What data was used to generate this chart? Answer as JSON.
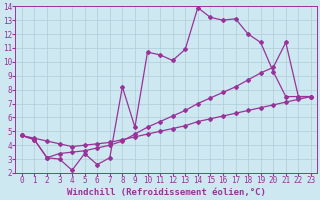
{
  "background_color": "#cde8f0",
  "line_color": "#993399",
  "grid_color": "#b0ccd8",
  "xlabel": "Windchill (Refroidissement éolien,°C)",
  "xlabel_fontsize": 6.5,
  "xlim": [
    -0.5,
    23.5
  ],
  "ylim": [
    2,
    14
  ],
  "xticks": [
    0,
    1,
    2,
    3,
    4,
    5,
    6,
    7,
    8,
    9,
    10,
    11,
    12,
    13,
    14,
    15,
    16,
    17,
    18,
    19,
    20,
    21,
    22,
    23
  ],
  "yticks": [
    2,
    3,
    4,
    5,
    6,
    7,
    8,
    9,
    10,
    11,
    12,
    13,
    14
  ],
  "series1_x": [
    0,
    1,
    2,
    3,
    4,
    5,
    6,
    7,
    8,
    9,
    10,
    11,
    12,
    13,
    14,
    15,
    16,
    17,
    18,
    19,
    20,
    21,
    22,
    23
  ],
  "series1_y": [
    4.7,
    4.4,
    3.1,
    3.0,
    2.2,
    3.4,
    2.6,
    3.1,
    8.2,
    5.3,
    10.7,
    10.5,
    10.1,
    10.9,
    13.9,
    13.2,
    13.0,
    13.1,
    12.0,
    11.4,
    9.3,
    7.5,
    7.5,
    7.5
  ],
  "series2_x": [
    0,
    1,
    2,
    3,
    4,
    5,
    6,
    7,
    8,
    9,
    10,
    11,
    12,
    13,
    14,
    15,
    16,
    17,
    18,
    19,
    20,
    21,
    22,
    23
  ],
  "series2_y": [
    4.7,
    4.4,
    3.1,
    3.4,
    3.5,
    3.6,
    3.8,
    4.0,
    4.3,
    4.8,
    5.3,
    5.7,
    6.1,
    6.5,
    7.0,
    7.4,
    7.8,
    8.2,
    8.7,
    9.2,
    9.6,
    11.4,
    7.5,
    7.5
  ],
  "series3_x": [
    0,
    1,
    2,
    3,
    4,
    5,
    6,
    7,
    8,
    9,
    10,
    11,
    12,
    13,
    14,
    15,
    16,
    17,
    18,
    19,
    20,
    21,
    22,
    23
  ],
  "series3_y": [
    4.7,
    4.5,
    4.3,
    4.1,
    3.9,
    4.0,
    4.1,
    4.2,
    4.4,
    4.6,
    4.8,
    5.0,
    5.2,
    5.4,
    5.7,
    5.9,
    6.1,
    6.3,
    6.5,
    6.7,
    6.9,
    7.1,
    7.3,
    7.5
  ],
  "marker": "D",
  "markersize": 2.0,
  "linewidth": 0.9,
  "tick_fontsize": 5.5,
  "tick_color": "#993399"
}
